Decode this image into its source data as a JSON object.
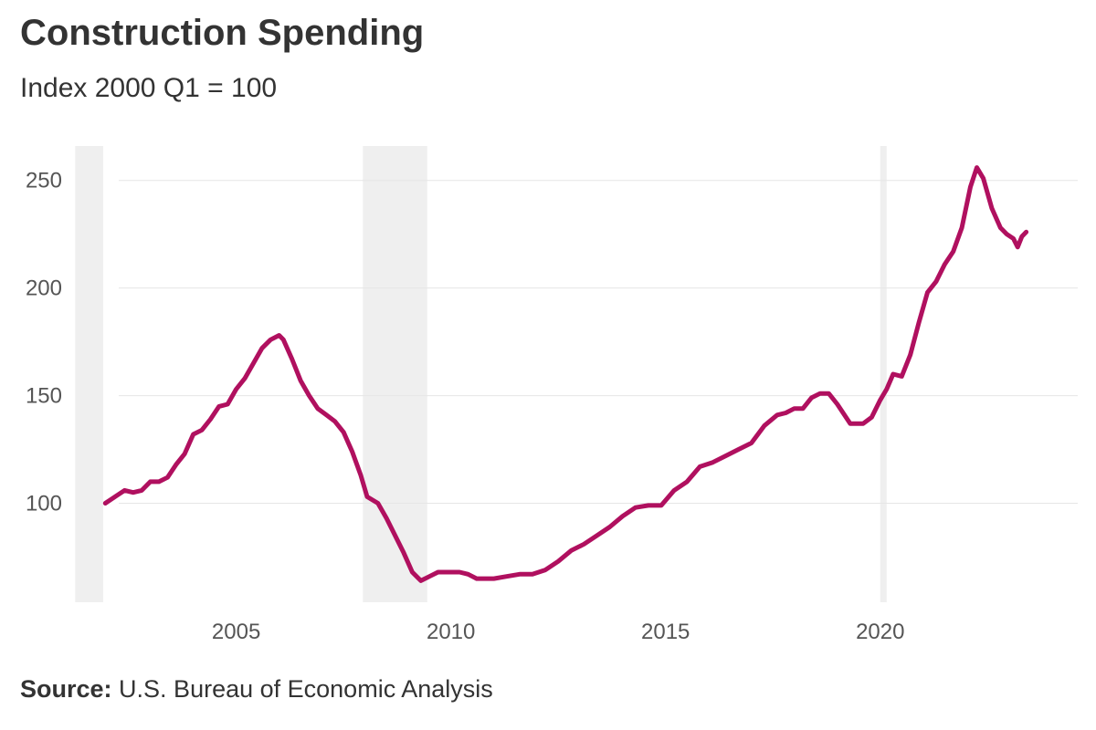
{
  "header": {
    "title": "Construction Spending",
    "subtitle": "Index 2000 Q1 = 100"
  },
  "footer": {
    "source_label": "Source:",
    "source_text": "U.S. Bureau of Economic Analysis"
  },
  "colors": {
    "line": "#b0105f",
    "recession_band": "#efefef",
    "grid": "#e6e6e6"
  },
  "chart_data": {
    "type": "line",
    "title": "Construction Spending",
    "subtitle": "Index 2000 Q1 = 100",
    "xlabel": "",
    "ylabel": "",
    "xlim": [
      2001.2,
      2024.6
    ],
    "ylim": [
      54,
      266
    ],
    "x_ticks": [
      2005,
      2010,
      2015,
      2020
    ],
    "y_ticks": [
      100,
      150,
      200,
      250
    ],
    "grid": "horizontal",
    "recessions": [
      [
        2001.25,
        2001.9
      ],
      [
        2007.95,
        2009.45
      ],
      [
        2020.0,
        2020.15
      ]
    ],
    "series": [
      {
        "x": [
          2001.95,
          2002.1,
          2002.25,
          2002.4,
          2002.6,
          2002.8,
          2003.0,
          2003.2,
          2003.4,
          2003.6,
          2003.8,
          2004.0,
          2004.2,
          2004.4,
          2004.6,
          2004.8,
          2005.0,
          2005.2,
          2005.4,
          2005.6,
          2005.8,
          2006.0,
          2006.1,
          2006.3,
          2006.5,
          2006.7,
          2006.9,
          2007.1,
          2007.3,
          2007.5,
          2007.7,
          2007.9,
          2008.05,
          2008.3,
          2008.5,
          2008.7,
          2008.9,
          2009.1,
          2009.3,
          2009.5,
          2009.7,
          2010.0,
          2010.2,
          2010.4,
          2010.6,
          2010.8,
          2011.0,
          2011.3,
          2011.6,
          2011.9,
          2012.2,
          2012.5,
          2012.8,
          2013.1,
          2013.4,
          2013.7,
          2014.0,
          2014.3,
          2014.6,
          2014.9,
          2015.2,
          2015.5,
          2015.8,
          2016.1,
          2016.4,
          2016.7,
          2017.0,
          2017.3,
          2017.6,
          2017.8,
          2018.0,
          2018.2,
          2018.4,
          2018.6,
          2018.8,
          2019.0,
          2019.3,
          2019.6,
          2019.8,
          2020.0,
          2020.15,
          2020.3,
          2020.5,
          2020.7,
          2020.9,
          2021.1,
          2021.3,
          2021.5,
          2021.7,
          2021.9,
          2022.1,
          2022.25,
          2022.4,
          2022.6,
          2022.8,
          2022.95,
          2023.1,
          2023.2,
          2023.3,
          2023.4
        ],
        "values": [
          100,
          102,
          104,
          106,
          105,
          106,
          110,
          110,
          112,
          118,
          123,
          132,
          134,
          139,
          145,
          146,
          153,
          158,
          165,
          172,
          176,
          178,
          176,
          167,
          157,
          150,
          144,
          141,
          138,
          133,
          124,
          113,
          103,
          100,
          93,
          85,
          77,
          68,
          64,
          66,
          68,
          68,
          68,
          67,
          65,
          65,
          65,
          66,
          67,
          67,
          69,
          73,
          78,
          81,
          85,
          89,
          94,
          98,
          99,
          99,
          106,
          110,
          117,
          119,
          122,
          125,
          128,
          136,
          141,
          142,
          144,
          144,
          149,
          151,
          151,
          146,
          137,
          137,
          140,
          148,
          153,
          160,
          159,
          169,
          184,
          198,
          203,
          211,
          217,
          228,
          247,
          256,
          251,
          237,
          228,
          225,
          223,
          219,
          224,
          226
        ]
      }
    ]
  }
}
